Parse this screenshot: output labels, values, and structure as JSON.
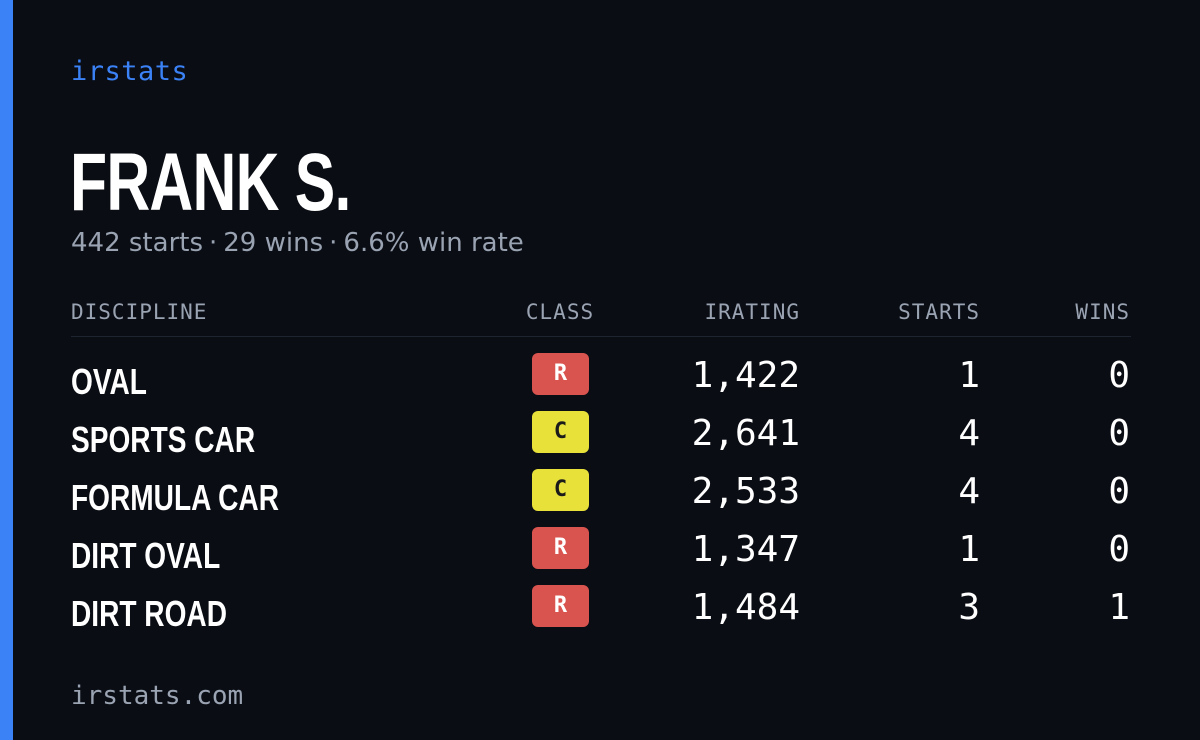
{
  "brand": "irstats",
  "driver": {
    "name": "FRANK S.",
    "starts_text": "442 starts",
    "wins_text": "29 wins",
    "winrate_text": "6.6% win rate",
    "separator": "·"
  },
  "table": {
    "headers": {
      "discipline": "DISCIPLINE",
      "class": "CLASS",
      "irating": "IRATING",
      "starts": "STARTS",
      "wins": "WINS"
    },
    "rows": [
      {
        "discipline": "OVAL",
        "class": "R",
        "irating": "1,422",
        "starts": "1",
        "wins": "0"
      },
      {
        "discipline": "SPORTS CAR",
        "class": "C",
        "irating": "2,641",
        "starts": "4",
        "wins": "0"
      },
      {
        "discipline": "FORMULA CAR",
        "class": "C",
        "irating": "2,533",
        "starts": "4",
        "wins": "0"
      },
      {
        "discipline": "DIRT OVAL",
        "class": "R",
        "irating": "1,347",
        "starts": "1",
        "wins": "0"
      },
      {
        "discipline": "DIRT ROAD",
        "class": "R",
        "irating": "1,484",
        "starts": "3",
        "wins": "1"
      }
    ]
  },
  "class_colors": {
    "R": {
      "bg": "#d9534f",
      "fg": "#ffffff"
    },
    "C": {
      "bg": "#e8e13a",
      "fg": "#1a1a1a"
    }
  },
  "colors": {
    "accent": "#3b82f6",
    "background": "#0a0d14",
    "muted_text": "#9aa3b2",
    "text": "#ffffff"
  },
  "footer": "irstats.com"
}
